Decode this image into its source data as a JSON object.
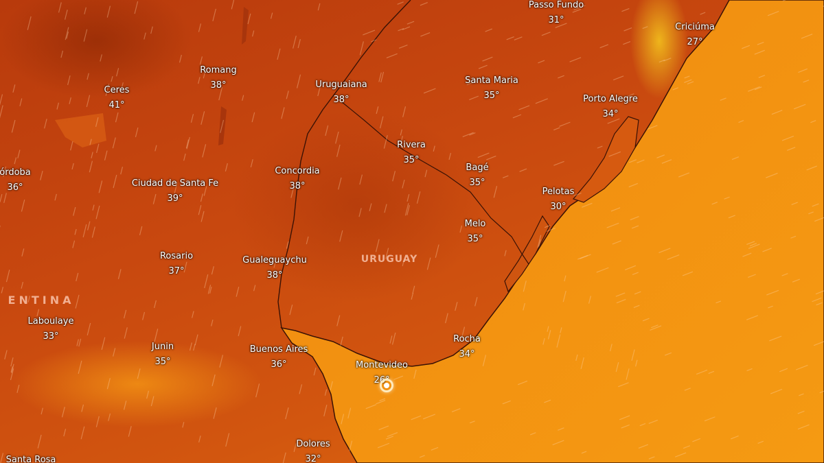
{
  "map": {
    "layer": "temperature",
    "colors": {
      "land_hot": "#c0430d",
      "ocean": "#f08a10",
      "coast": "#3a1205",
      "wind": "#ffd8b0"
    },
    "countries": [
      {
        "id": "uruguay",
        "label": "URUGUAY"
      },
      {
        "id": "argentina",
        "label": "ENTINA"
      }
    ],
    "cities": [
      {
        "name": "Passo Fundo",
        "temp": "31°"
      },
      {
        "name": "Criciúma",
        "temp": "27°"
      },
      {
        "name": "Romang",
        "temp": "38°"
      },
      {
        "name": "Ceres",
        "temp": "41°"
      },
      {
        "name": "Uruguaiana",
        "temp": "38°"
      },
      {
        "name": "Santa Maria",
        "temp": "35°"
      },
      {
        "name": "Porto Alegre",
        "temp": "34°"
      },
      {
        "name": "Rivera",
        "temp": "35°"
      },
      {
        "name": "órdoba",
        "temp": "36°"
      },
      {
        "name": "Ciudad de Santa Fe",
        "temp": "39°"
      },
      {
        "name": "Concordia",
        "temp": "38°"
      },
      {
        "name": "Bagé",
        "temp": "35°"
      },
      {
        "name": "Pelotas",
        "temp": "30°"
      },
      {
        "name": "Melo",
        "temp": "35°"
      },
      {
        "name": "Rosario",
        "temp": "37°"
      },
      {
        "name": "Gualeguaychu",
        "temp": "38°"
      },
      {
        "name": "Laboulaye",
        "temp": "33°"
      },
      {
        "name": "Junin",
        "temp": "35°"
      },
      {
        "name": "Buenos Aires",
        "temp": "36°"
      },
      {
        "name": "Rocha",
        "temp": "34°"
      },
      {
        "name": "Montevideo",
        "temp": "26°"
      },
      {
        "name": "Dolores",
        "temp": "32°"
      },
      {
        "name": "Santa Rosa",
        "temp": ""
      }
    ],
    "selected_location_icon": "location-marker-icon"
  }
}
